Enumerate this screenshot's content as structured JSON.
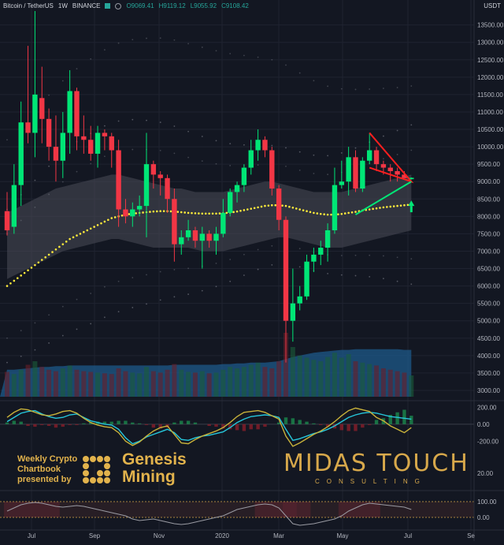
{
  "header": {
    "symbol": "Bitcoin / TetherUS",
    "interval": "1W",
    "exchange": "BINANCE",
    "open": "O9069.41",
    "high": "H9119.12",
    "low": "L9055.92",
    "close": "C9108.42"
  },
  "currency_label": "USDT",
  "branding": {
    "promo_lines": [
      "Weekly Crypto",
      "Chartbook",
      "presented by"
    ],
    "partner_line1": "Genesis",
    "partner_line2": "Mining",
    "logo_main": "MIDAS TOUCH",
    "logo_sub": "CONSULTING"
  },
  "colors": {
    "background": "#131722",
    "bull": "#00e676",
    "bear": "#f23645",
    "band_fill": "#4a4d58",
    "volume": "#1e5a8a",
    "ma_dots": "#ffeb3b",
    "osc_cyan": "#26c6da",
    "osc_yellow": "#c8b23a",
    "triangle_red": "#ff1f1f",
    "triangle_green": "#00e676"
  },
  "chart_data": [
    {
      "type": "candlestick",
      "price_axis_ticks": [
        "13500.00",
        "13000.00",
        "12500.00",
        "12000.00",
        "11500.00",
        "11000.00",
        "10500.00",
        "10000.00",
        "9500.00",
        "9000.00",
        "8500.00",
        "8000.00",
        "7500.00",
        "7000.00",
        "6500.00",
        "6000.00",
        "5500.00",
        "5000.00",
        "4500.00",
        "4000.00",
        "3500.00",
        "3000.00"
      ],
      "time_axis_ticks": [
        "Jul",
        "Sep",
        "Nov",
        "2020",
        "Mar",
        "May",
        "Jul",
        "Se"
      ],
      "ylim": [
        2750,
        13900
      ],
      "candles": [
        [
          8150,
          8700,
          7450,
          7600
        ],
        [
          7700,
          9500,
          7500,
          8900
        ],
        [
          8900,
          11300,
          8300,
          10700
        ],
        [
          10700,
          12900,
          10100,
          10400
        ],
        [
          10400,
          13900,
          9700,
          11500
        ],
        [
          11400,
          12300,
          10100,
          10800
        ],
        [
          10800,
          11100,
          9600,
          10000
        ],
        [
          10000,
          10900,
          9000,
          9600
        ],
        [
          9600,
          11000,
          9100,
          10400
        ],
        [
          10400,
          12200,
          9800,
          11600
        ],
        [
          11600,
          11700,
          9900,
          10300
        ],
        [
          10300,
          10900,
          9800,
          10200
        ],
        [
          10200,
          10600,
          9600,
          9800
        ],
        [
          9800,
          10600,
          9400,
          10400
        ],
        [
          10400,
          10500,
          9900,
          10300
        ],
        [
          10300,
          10400,
          9400,
          9900
        ],
        [
          9900,
          10200,
          7700,
          8200
        ],
        [
          8200,
          8500,
          7800,
          8000
        ],
        [
          8000,
          8400,
          7700,
          8200
        ],
        [
          8200,
          8600,
          8000,
          8300
        ],
        [
          8300,
          10400,
          7400,
          9500
        ],
        [
          9500,
          9600,
          8800,
          9200
        ],
        [
          9200,
          9300,
          8600,
          9100
        ],
        [
          9100,
          9200,
          8100,
          8500
        ],
        [
          8500,
          8800,
          6700,
          7200
        ],
        [
          7200,
          7600,
          6900,
          7400
        ],
        [
          7400,
          7900,
          7300,
          7600
        ],
        [
          7600,
          7700,
          7100,
          7300
        ],
        [
          7300,
          7700,
          6500,
          7500
        ],
        [
          7500,
          7600,
          7100,
          7300
        ],
        [
          7300,
          7700,
          6900,
          7500
        ],
        [
          7500,
          8500,
          7400,
          8100
        ],
        [
          8100,
          8800,
          8000,
          8700
        ],
        [
          8700,
          9000,
          8400,
          8900
        ],
        [
          8900,
          9500,
          8700,
          9400
        ],
        [
          9400,
          10200,
          9200,
          9900
        ],
        [
          9900,
          10500,
          9600,
          10200
        ],
        [
          10200,
          10300,
          9700,
          9900
        ],
        [
          9900,
          10000,
          8600,
          8800
        ],
        [
          8800,
          8900,
          7600,
          7900
        ],
        [
          7900,
          8000,
          3800,
          5000
        ],
        [
          5000,
          6500,
          4400,
          5500
        ],
        [
          5500,
          6000,
          5300,
          5700
        ],
        [
          5700,
          6900,
          5600,
          6700
        ],
        [
          6700,
          7100,
          6400,
          6900
        ],
        [
          6900,
          7300,
          6600,
          7100
        ],
        [
          7100,
          7800,
          6700,
          7600
        ],
        [
          7600,
          9400,
          7500,
          8900
        ],
        [
          8900,
          9600,
          8800,
          9000
        ],
        [
          9000,
          10000,
          8600,
          9700
        ],
        [
          9700,
          9900,
          8700,
          8800
        ],
        [
          8800,
          9700,
          8700,
          9600
        ],
        [
          9600,
          10400,
          9500,
          9900
        ],
        [
          9900,
          10000,
          9300,
          9500
        ],
        [
          9500,
          9600,
          9200,
          9400
        ],
        [
          9400,
          9500,
          9000,
          9300
        ],
        [
          9300,
          9400,
          9000,
          9200
        ],
        [
          9200,
          9300,
          9100,
          9100
        ],
        [
          9069.41,
          9119.12,
          9055.92,
          9108.42
        ]
      ],
      "band_upper": [
        8100,
        8200,
        8300,
        8400,
        8500,
        8600,
        8700,
        8800,
        8850,
        8900,
        8950,
        9000,
        9050,
        9100,
        9150,
        9200,
        9200,
        9150,
        9100,
        9050,
        9000,
        8950,
        8900,
        8850,
        8800,
        8800,
        8750,
        8700,
        8700,
        8700,
        8700,
        8700,
        8750,
        8800,
        8850,
        8900,
        8950,
        9000,
        9000,
        8950,
        8900,
        8850,
        8800,
        8750,
        8700,
        8700,
        8700,
        8700,
        8700,
        8750,
        8800,
        8850,
        8900,
        8950,
        9000,
        9050,
        9100,
        9150,
        9200
      ],
      "band_lower": [
        6200,
        6300,
        6400,
        6500,
        6600,
        6700,
        6800,
        6900,
        7000,
        7050,
        7100,
        7150,
        7200,
        7250,
        7300,
        7350,
        7350,
        7300,
        7250,
        7200,
        7150,
        7100,
        7100,
        7100,
        7100,
        7100,
        7100,
        7050,
        7000,
        7000,
        7000,
        7000,
        7050,
        7100,
        7150,
        7200,
        7250,
        7300,
        7350,
        7400,
        7400,
        7350,
        7300,
        7250,
        7200,
        7150,
        7100,
        7100,
        7100,
        7150,
        7200,
        7250,
        7300,
        7350,
        7400,
        7450,
        7500,
        7550,
        7600
      ],
      "ma": [
        6000,
        6150,
        6300,
        6450,
        6600,
        6750,
        6900,
        7050,
        7200,
        7350,
        7450,
        7550,
        7650,
        7750,
        7850,
        7950,
        8000,
        8050,
        8080,
        8100,
        8120,
        8140,
        8150,
        8150,
        8140,
        8120,
        8100,
        8090,
        8080,
        8080,
        8080,
        8090,
        8110,
        8140,
        8180,
        8220,
        8260,
        8300,
        8320,
        8320,
        8300,
        8250,
        8200,
        8150,
        8100,
        8070,
        8050,
        8050,
        8070,
        8100,
        8130,
        8170,
        8200,
        8230,
        8260,
        8280,
        8300,
        8320,
        8340
      ],
      "volume": [
        35,
        32,
        38,
        45,
        50,
        42,
        38,
        36,
        40,
        44,
        38,
        36,
        35,
        34,
        33,
        32,
        40,
        36,
        34,
        33,
        42,
        36,
        34,
        38,
        46,
        38,
        35,
        34,
        36,
        33,
        34,
        38,
        42,
        40,
        42,
        45,
        48,
        42,
        40,
        50,
        90,
        70,
        58,
        55,
        52,
        50,
        56,
        62,
        55,
        60,
        50,
        48,
        46,
        44,
        40,
        38,
        36,
        34,
        30
      ],
      "volume_area": [
        38,
        38,
        39,
        40,
        41,
        42,
        42,
        43,
        43,
        44,
        44,
        44,
        44,
        44,
        44,
        44,
        44,
        44,
        44,
        44,
        44,
        44,
        44,
        44,
        45,
        45,
        45,
        45,
        45,
        45,
        45,
        46,
        46,
        47,
        47,
        48,
        48,
        48,
        49,
        50,
        53,
        56,
        58,
        60,
        62,
        63,
        64,
        65,
        66,
        66,
        67,
        67,
        67,
        67,
        67,
        67,
        67,
        66,
        66
      ],
      "triangle_red": [
        [
          52,
          10400
        ],
        [
          58,
          9000
        ],
        [
          52,
          9400
        ]
      ],
      "triangle_green": [
        [
          50,
          8050
        ],
        [
          58,
          9000
        ]
      ],
      "arrow_at": [
        58,
        8300
      ]
    },
    {
      "type": "line",
      "name_ticks": [
        "200.00",
        "0.00",
        "-200.00"
      ],
      "ylim": [
        -280,
        240
      ],
      "series": [
        {
          "color": "cyan",
          "values": [
            30,
            80,
            130,
            150,
            160,
            120,
            90,
            70,
            80,
            110,
            120,
            80,
            40,
            20,
            0,
            -10,
            -60,
            -160,
            -230,
            -200,
            -150,
            -120,
            -90,
            -60,
            -100,
            -180,
            -190,
            -160,
            -140,
            -130,
            -110,
            -90,
            -40,
            20,
            60,
            90,
            100,
            110,
            100,
            80,
            -60,
            -190,
            -170,
            -140,
            -110,
            -90,
            -60,
            -20,
            30,
            80,
            110,
            130,
            140,
            130,
            110,
            90,
            80,
            70,
            60
          ]
        },
        {
          "color": "yellow",
          "values": [
            80,
            140,
            180,
            170,
            140,
            110,
            100,
            120,
            150,
            160,
            130,
            70,
            20,
            -10,
            -30,
            -40,
            -100,
            -200,
            -250,
            -210,
            -140,
            -80,
            -40,
            -20,
            -120,
            -220,
            -230,
            -180,
            -140,
            -110,
            -80,
            -40,
            20,
            90,
            140,
            150,
            160,
            140,
            100,
            60,
            -140,
            -260,
            -220,
            -170,
            -120,
            -80,
            -30,
            30,
            100,
            160,
            190,
            170,
            150,
            80,
            40,
            -20,
            -60,
            -100,
            -40
          ]
        }
      ],
      "histogram": [
        20,
        40,
        30,
        -20,
        -30,
        -10,
        -20,
        -40,
        -30,
        -10,
        -10,
        10,
        20,
        30,
        30,
        30,
        40,
        40,
        20,
        10,
        -10,
        -40,
        -50,
        -40,
        20,
        40,
        40,
        20,
        0,
        -20,
        -30,
        -50,
        -60,
        -70,
        -80,
        -60,
        -60,
        -30,
        0,
        20,
        80,
        70,
        50,
        30,
        10,
        -10,
        -30,
        -50,
        -70,
        -80,
        -80,
        -40,
        -10,
        50,
        70,
        110,
        140,
        170,
        100
      ]
    },
    {
      "type": "line",
      "name_ticks": [
        "100.00",
        "0.00"
      ],
      "ylim": [
        -60,
        150
      ],
      "series": [
        {
          "color": "gray",
          "values": [
            40,
            60,
            80,
            90,
            95,
            90,
            80,
            70,
            65,
            70,
            75,
            70,
            60,
            50,
            40,
            30,
            20,
            10,
            -10,
            -20,
            -15,
            -10,
            -20,
            -30,
            -40,
            -45,
            -40,
            -30,
            -20,
            -10,
            0,
            10,
            30,
            50,
            60,
            70,
            80,
            85,
            80,
            60,
            10,
            -40,
            -50,
            -45,
            -40,
            -30,
            -20,
            -10,
            10,
            40,
            60,
            80,
            90,
            85,
            80,
            75,
            70,
            65,
            50
          ]
        }
      ]
    }
  ]
}
